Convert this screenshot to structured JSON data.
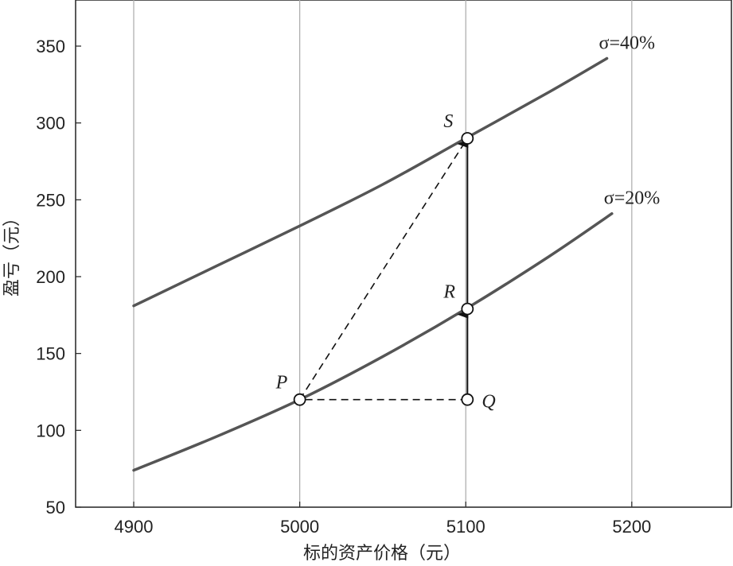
{
  "chart_data": {
    "type": "line",
    "title": "",
    "xlabel": "标的资产价格（元）",
    "ylabel": "盈亏（元）",
    "xlim": [
      4865,
      5260
    ],
    "ylim": [
      50,
      380
    ],
    "xticks": [
      4900,
      5000,
      5100,
      5200
    ],
    "yticks": [
      50,
      100,
      150,
      200,
      250,
      300,
      350
    ],
    "grid": "vertical",
    "series": [
      {
        "name": "σ=40%",
        "color": "#555555",
        "x": [
          4900,
          4950,
          5000,
          5050,
          5100,
          5150,
          5185
        ],
        "y": [
          181,
          207,
          233,
          260,
          290,
          320,
          342
        ]
      },
      {
        "name": "σ=20%",
        "color": "#555555",
        "x": [
          4900,
          4950,
          5000,
          5050,
          5100,
          5150,
          5188
        ],
        "y": [
          74,
          96,
          120,
          148,
          179,
          213,
          241
        ]
      }
    ],
    "points": [
      {
        "label": "P",
        "x": 5000,
        "y": 120
      },
      {
        "label": "Q",
        "x": 5101,
        "y": 120
      },
      {
        "label": "R",
        "x": 5101,
        "y": 179
      },
      {
        "label": "S",
        "x": 5101,
        "y": 290
      }
    ]
  }
}
